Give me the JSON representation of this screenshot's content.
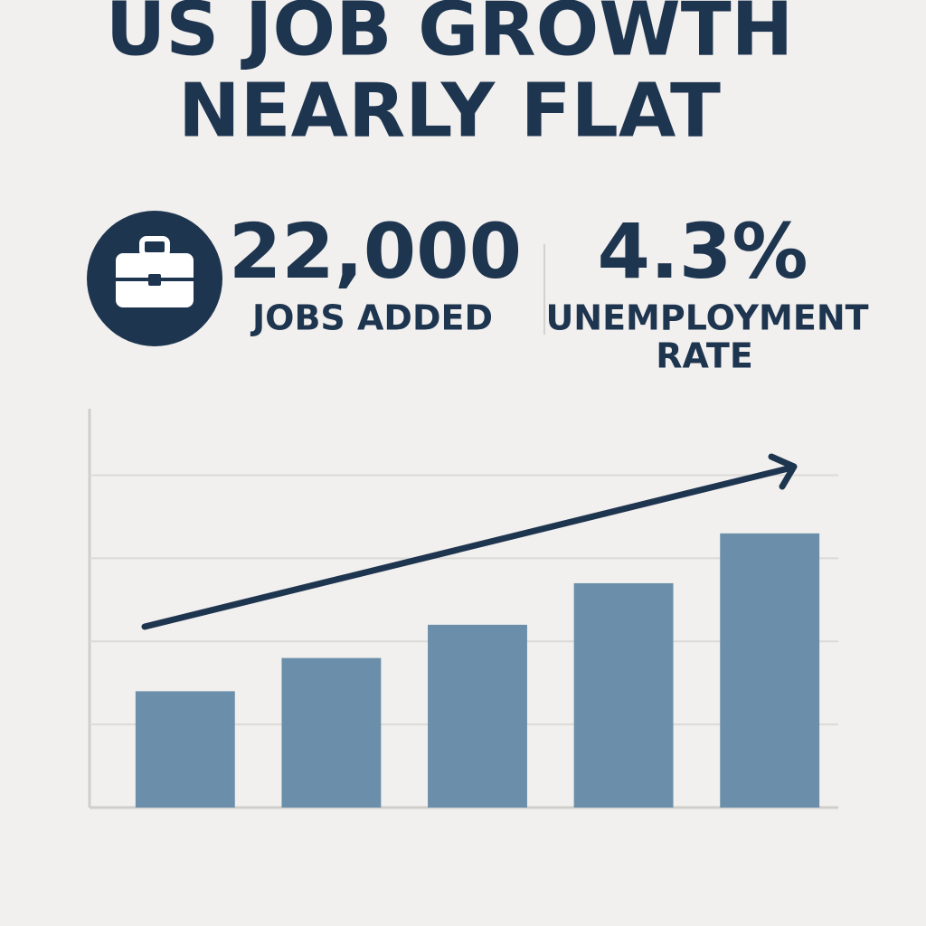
{
  "header": {
    "title": [
      "US JOB GROWTH",
      "NEARLY FLAT"
    ]
  },
  "stats": [
    {
      "value": "22,000",
      "label": [
        "JOBS ADDED"
      ]
    },
    {
      "value": "4.3%",
      "label": [
        "UNEMPLOYMENT",
        "RATE"
      ]
    }
  ],
  "chart_data": {
    "type": "bar",
    "categories": [
      null,
      null,
      null,
      null,
      null
    ],
    "values": [
      1.4,
      1.8,
      2.2,
      2.7,
      3.3
    ],
    "color": "#6b8faa",
    "ylim": [
      0,
      4.8
    ],
    "yticks": [
      0,
      1,
      2,
      3,
      4
    ],
    "grid": true
  }
}
